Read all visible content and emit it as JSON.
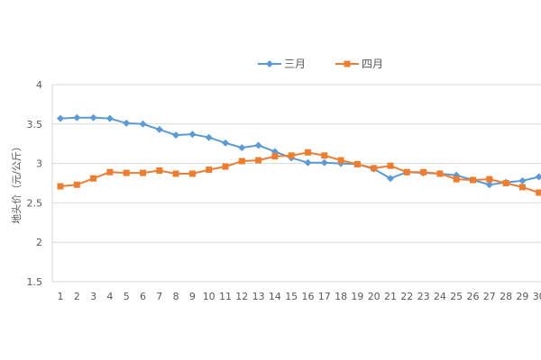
{
  "chart_data": {
    "type": "line",
    "title": "",
    "xlabel": "",
    "ylabel": "地头价（元/公斤）",
    "ylim": [
      1.5,
      4
    ],
    "yticks": [
      "1.5",
      "2",
      "2.5",
      "3",
      "3.5",
      "4"
    ],
    "grid": true,
    "legend_position": "top",
    "categories": [
      "1",
      "2",
      "3",
      "4",
      "5",
      "6",
      "7",
      "8",
      "9",
      "10",
      "11",
      "12",
      "13",
      "14",
      "15",
      "16",
      "17",
      "18",
      "19",
      "20",
      "21",
      "22",
      "23",
      "24",
      "25",
      "26",
      "27",
      "28",
      "29",
      "30"
    ],
    "series": [
      {
        "name": "三月",
        "color": "#5B9BD5",
        "marker": "diamond",
        "values": [
          3.57,
          3.58,
          3.58,
          3.57,
          3.51,
          3.5,
          3.43,
          3.36,
          3.37,
          3.33,
          3.26,
          3.2,
          3.23,
          3.15,
          3.07,
          3.01,
          3.01,
          3.0,
          2.99,
          2.93,
          2.81,
          2.89,
          2.88,
          2.87,
          2.85,
          2.79,
          2.73,
          2.76,
          2.78,
          2.83
        ]
      },
      {
        "name": "四月",
        "color": "#ED7D31",
        "marker": "square",
        "values": [
          2.71,
          2.73,
          2.81,
          2.89,
          2.88,
          2.88,
          2.91,
          2.87,
          2.87,
          2.92,
          2.96,
          3.03,
          3.04,
          3.09,
          3.1,
          3.14,
          3.1,
          3.04,
          2.99,
          2.94,
          2.97,
          2.89,
          2.89,
          2.87,
          2.8,
          2.79,
          2.8,
          2.75,
          2.7,
          2.63
        ]
      }
    ]
  }
}
